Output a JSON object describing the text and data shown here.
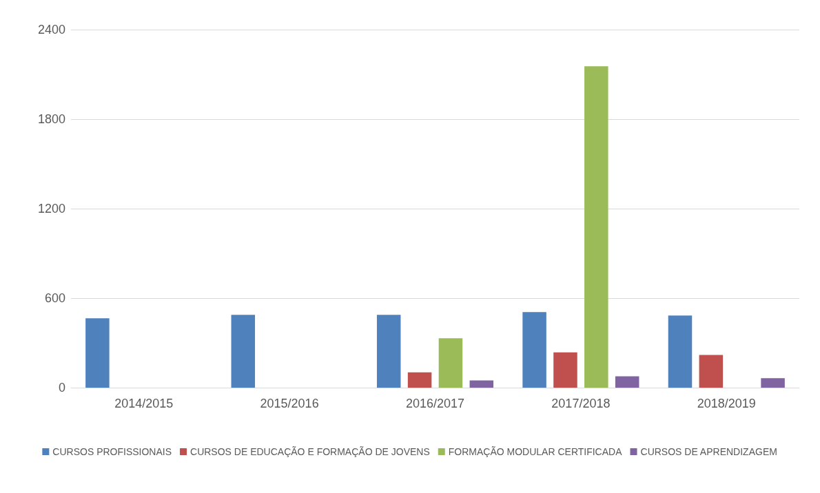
{
  "chart_data": {
    "type": "bar",
    "categories": [
      "2014/2015",
      "2015/2016",
      "2016/2017",
      "2017/2018",
      "2018/2019"
    ],
    "series": [
      {
        "name": "CURSOS PROFISSIONAIS",
        "color": "#4f81bd",
        "values": [
          465,
          488,
          488,
          506,
          484
        ]
      },
      {
        "name": "CURSOS DE EDUCAÇÃO E FORMAÇÃO DE JOVENS",
        "color": "#c0504d",
        "values": [
          null,
          null,
          103,
          237,
          219
        ]
      },
      {
        "name": "FORMAÇÃO MODULAR CERTIFICADA",
        "color": "#9bbb59",
        "values": [
          null,
          null,
          331,
          2154,
          null
        ]
      },
      {
        "name": "CURSOS DE APRENDIZAGEM",
        "color": "#8064a2",
        "values": [
          null,
          null,
          49,
          76,
          63
        ]
      }
    ],
    "ylim": [
      0,
      2400
    ],
    "yticks": [
      0,
      600,
      1200,
      1800,
      2400
    ],
    "grid": "y",
    "legend": "bottom"
  }
}
